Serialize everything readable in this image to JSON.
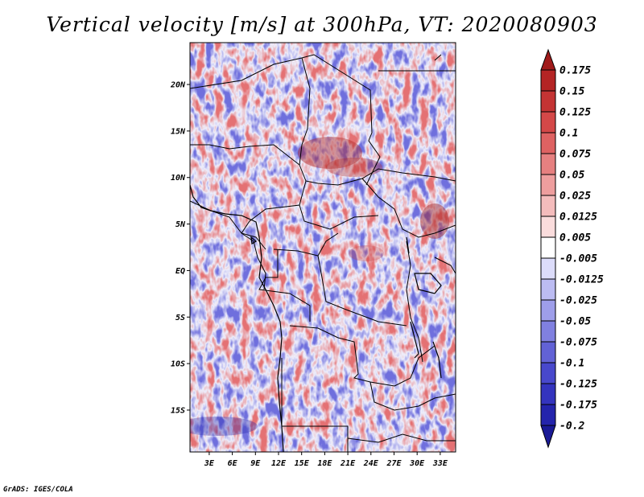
{
  "title": "Vertical velocity [m/s] at 300hPa, VT: 2020080903",
  "credit": "GrADS: IGES/COLA",
  "map": {
    "lat_labels": [
      "20N",
      "15N",
      "10N",
      "5N",
      "EQ",
      "5S",
      "10S",
      "15S"
    ],
    "lat_values": [
      20,
      15,
      10,
      5,
      0,
      -5,
      -10,
      -15
    ],
    "lon_labels": [
      "3E",
      "6E",
      "9E",
      "12E",
      "15E",
      "18E",
      "21E",
      "24E",
      "27E",
      "30E",
      "33E"
    ],
    "lon_values": [
      3,
      6,
      9,
      12,
      15,
      18,
      21,
      24,
      27,
      30,
      33
    ],
    "lon_range": [
      0.5,
      35
    ],
    "lat_range": [
      -19.5,
      24.5
    ]
  },
  "colorbar": {
    "labels": [
      "0.175",
      "0.15",
      "0.125",
      "0.1",
      "0.075",
      "0.05",
      "0.025",
      "0.0125",
      "0.005",
      "-0.005",
      "-0.0125",
      "-0.025",
      "-0.05",
      "-0.075",
      "-0.1",
      "-0.125",
      "-0.175",
      "-0.2"
    ],
    "colors": [
      "#a01a1a",
      "#b42424",
      "#c43434",
      "#d44848",
      "#de6262",
      "#e68080",
      "#ee9e9e",
      "#f4bcbc",
      "#fadcdc",
      "#ffffff",
      "#dcdcfa",
      "#bcbcf2",
      "#9e9eea",
      "#8080e0",
      "#6262d6",
      "#4848cc",
      "#3434be",
      "#2424ac",
      "#1a1a96"
    ]
  }
}
